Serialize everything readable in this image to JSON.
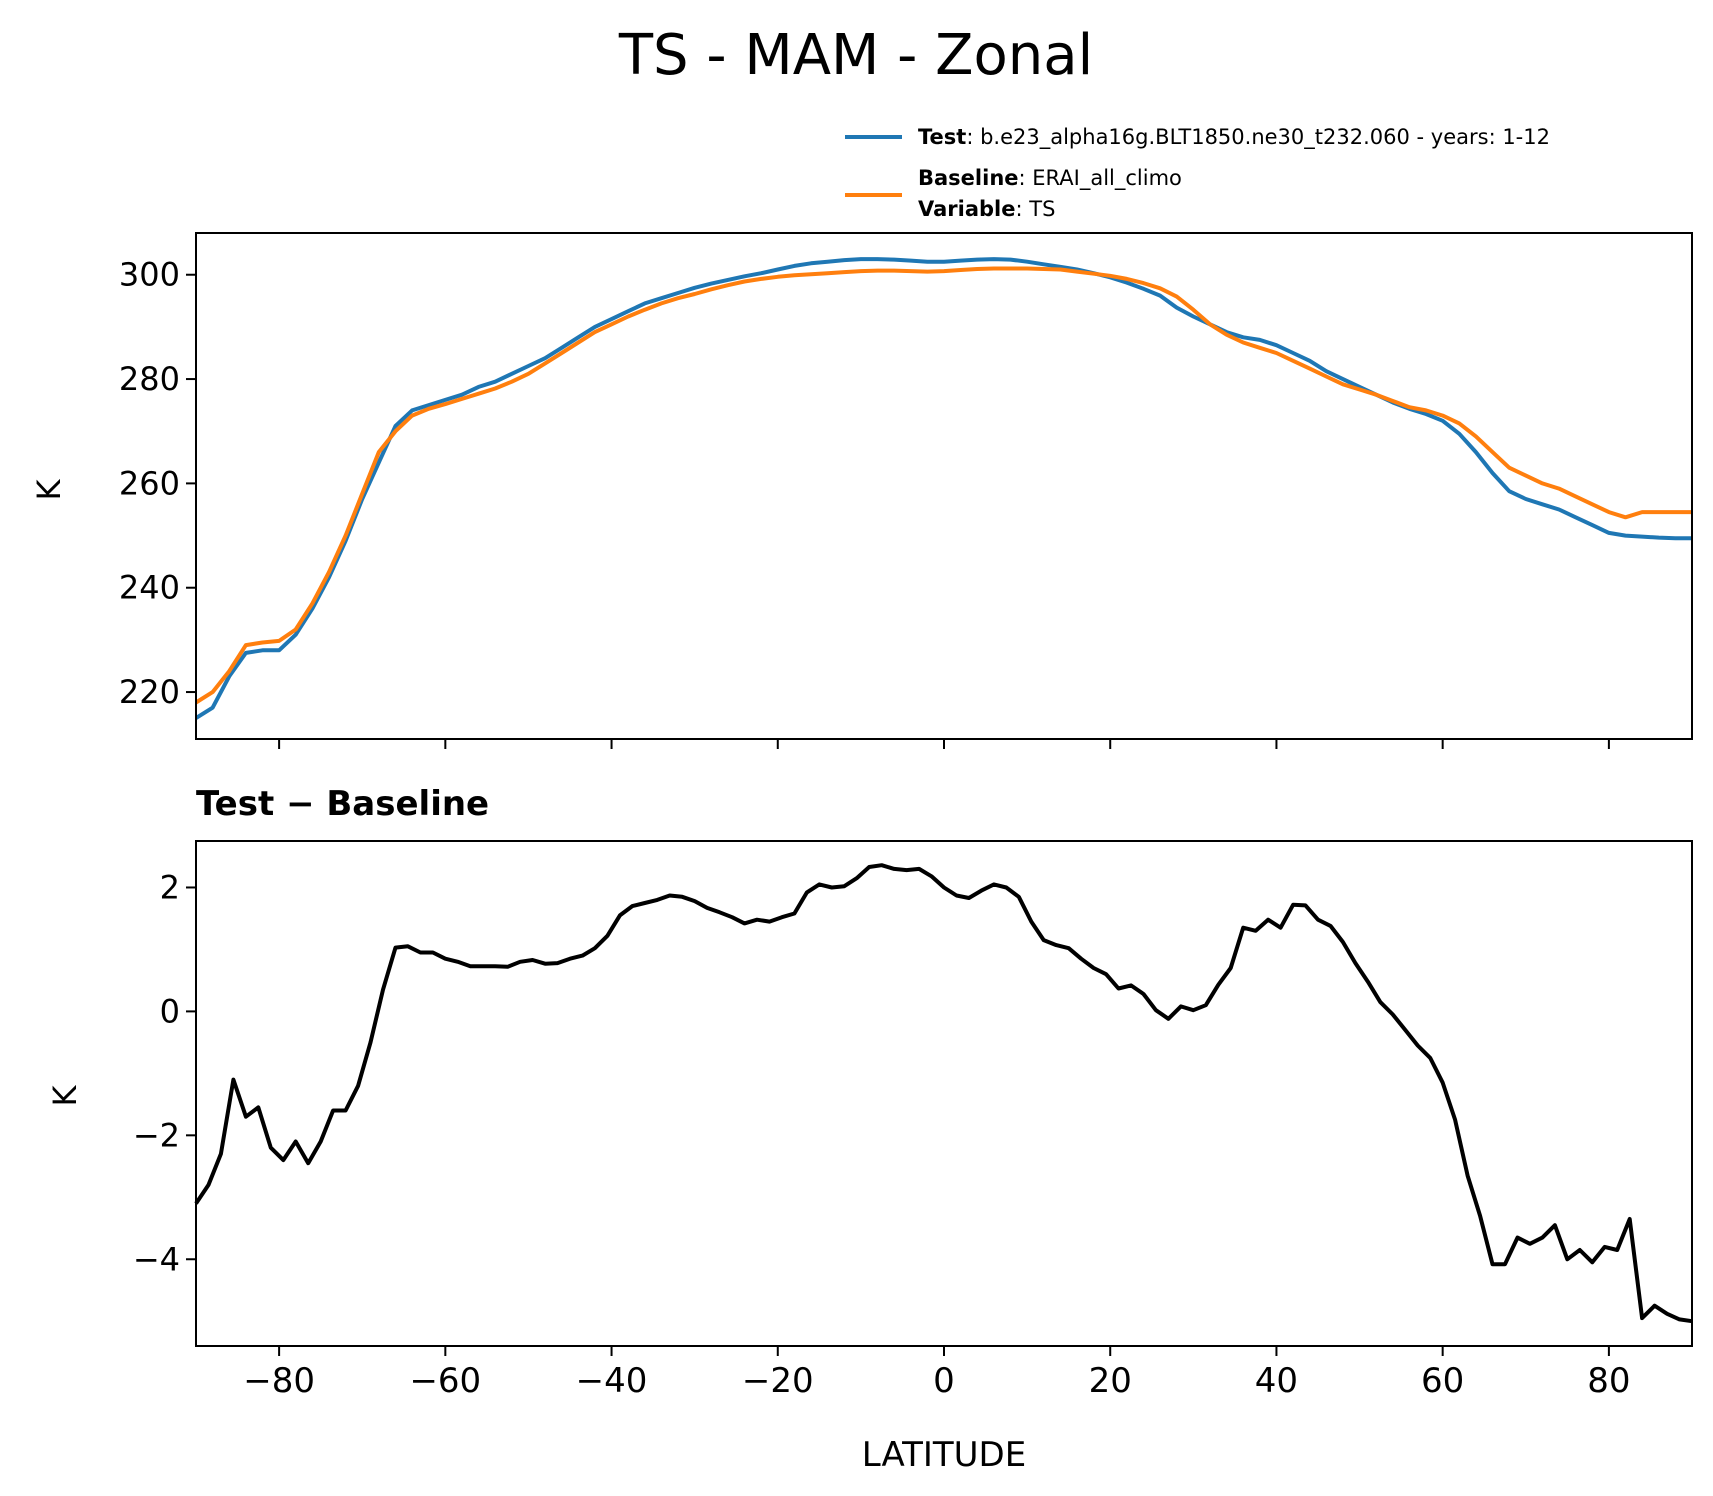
{
  "chart_data": [
    {
      "type": "line",
      "title": "TS - MAM - Zonal",
      "ylabel": "K",
      "xlim": [
        -90,
        90
      ],
      "ylim": [
        211,
        308
      ],
      "yticks": [
        220,
        240,
        260,
        280,
        300
      ],
      "xticks": [
        -80,
        -60,
        -40,
        -20,
        0,
        20,
        40,
        60,
        80
      ],
      "legend": {
        "placement": "above-right",
        "entries": [
          {
            "bold": "Test",
            "text": ": b.e23_alpha16g.BLT1850.ne30_t232.060 - years: 1-12",
            "color": "#1f77b4"
          },
          {
            "bold": "Baseline",
            "text": ": ERAI_all_climo",
            "color": "#ff7f0e"
          },
          {
            "bold": "Variable",
            "text": ": TS"
          }
        ]
      },
      "x": [
        -90,
        -88,
        -86,
        -84,
        -82,
        -80,
        -78,
        -76,
        -74,
        -72,
        -70,
        -68,
        -66,
        -64,
        -62,
        -60,
        -58,
        -56,
        -54,
        -52,
        -50,
        -48,
        -46,
        -44,
        -42,
        -40,
        -38,
        -36,
        -34,
        -32,
        -30,
        -28,
        -26,
        -24,
        -22,
        -20,
        -18,
        -16,
        -14,
        -12,
        -10,
        -8,
        -6,
        -4,
        -2,
        0,
        2,
        4,
        6,
        8,
        10,
        12,
        14,
        16,
        18,
        20,
        22,
        24,
        26,
        28,
        30,
        32,
        34,
        36,
        38,
        40,
        42,
        44,
        46,
        48,
        50,
        52,
        54,
        56,
        58,
        60,
        62,
        64,
        66,
        68,
        70,
        72,
        74,
        76,
        78,
        80,
        82,
        84,
        86,
        88,
        90
      ],
      "series": [
        {
          "name": "Test",
          "color": "#1f77b4",
          "values": [
            215,
            217,
            223,
            227.5,
            228,
            228,
            231,
            236,
            242,
            249,
            257,
            264,
            271,
            274,
            275,
            276,
            277,
            278.5,
            279.5,
            281,
            282.5,
            284,
            286,
            288,
            290,
            291.5,
            293,
            294.5,
            295.5,
            296.5,
            297.5,
            298.3,
            299,
            299.7,
            300.3,
            301,
            301.7,
            302.2,
            302.5,
            302.8,
            303,
            303,
            302.9,
            302.7,
            302.5,
            302.5,
            302.7,
            302.9,
            303,
            302.9,
            302.5,
            302,
            301.5,
            301,
            300.3,
            299.5,
            298.5,
            297.3,
            296,
            293.7,
            292,
            290.5,
            289,
            288,
            287.5,
            286.5,
            285,
            283.5,
            281.5,
            280,
            278.5,
            277,
            275.5,
            274.3,
            273.3,
            272,
            269.5,
            266,
            262,
            258.5,
            257,
            256,
            255,
            253.5,
            252,
            250.5,
            250,
            249.8,
            249.6,
            249.5,
            249.5
          ]
        },
        {
          "name": "Baseline",
          "color": "#ff7f0e",
          "values": [
            218,
            220,
            224,
            229,
            229.5,
            229.8,
            232,
            237,
            243,
            250,
            258,
            266,
            270,
            273,
            274.3,
            275.2,
            276.2,
            277.2,
            278.2,
            279.5,
            281,
            283,
            285,
            287,
            289,
            290.5,
            292,
            293.3,
            294.5,
            295.5,
            296.3,
            297.2,
            298,
            298.7,
            299.2,
            299.6,
            299.9,
            300.1,
            300.3,
            300.5,
            300.7,
            300.8,
            300.8,
            300.7,
            300.6,
            300.7,
            300.9,
            301.1,
            301.2,
            301.2,
            301.2,
            301.1,
            301,
            300.6,
            300.2,
            299.8,
            299.2,
            298.4,
            297.4,
            295.8,
            293.3,
            290.5,
            288.5,
            287,
            286,
            285,
            283.5,
            282,
            280.5,
            279,
            278,
            277,
            275.8,
            274.6,
            274,
            273,
            271.5,
            269,
            266,
            263,
            261.5,
            260,
            259,
            257.5,
            256,
            254.5,
            253.5,
            254.5,
            254.5,
            254.5,
            254.5
          ]
        }
      ]
    },
    {
      "type": "line",
      "title": "Test − Baseline",
      "ylabel": "K",
      "xlabel": "LATITUDE",
      "xlim": [
        -90,
        90
      ],
      "ylim": [
        -5.4,
        2.75
      ],
      "yticks": [
        -4,
        -2,
        0,
        2
      ],
      "xticks": [
        -80,
        -60,
        -40,
        -20,
        0,
        20,
        40,
        60,
        80
      ],
      "x": [
        -90,
        -88.5,
        -87,
        -85.5,
        -84,
        -82.5,
        -81,
        -79.5,
        -78,
        -76.5,
        -75,
        -73.5,
        -72,
        -70.5,
        -69,
        -67.5,
        -66,
        -64.5,
        -63,
        -61.5,
        -60,
        -58.5,
        -57,
        -55.5,
        -54,
        -52.5,
        -51,
        -49.5,
        -48,
        -46.5,
        -45,
        -43.5,
        -42,
        -40.5,
        -39,
        -37.5,
        -36,
        -34.5,
        -33,
        -31.5,
        -30,
        -28.5,
        -27,
        -25.5,
        -24,
        -22.5,
        -21,
        -19.5,
        -18,
        -16.5,
        -15,
        -13.5,
        -12,
        -10.5,
        -9,
        -7.5,
        -6,
        -4.5,
        -3,
        -1.5,
        0,
        1.5,
        3,
        4.5,
        6,
        7.5,
        9,
        10.5,
        12,
        13.5,
        15,
        16.5,
        18,
        19.5,
        21,
        22.5,
        24,
        25.5,
        27,
        28.5,
        30,
        31.5,
        33,
        34.5,
        36,
        37.5,
        39,
        40.5,
        42,
        43.5,
        45,
        46.5,
        48,
        49.5,
        51,
        52.5,
        54,
        55.5,
        57,
        58.5,
        60,
        61.5,
        63,
        64.5,
        66,
        67.5,
        69,
        70.5,
        72,
        73.5,
        75,
        76.5,
        78,
        79.5,
        81,
        82.5,
        84,
        85.5,
        87,
        88.5,
        90
      ],
      "series": [
        {
          "color": "#000000",
          "values": [
            -3.1,
            -2.8,
            -2.3,
            -1.1,
            -1.7,
            -1.55,
            -2.2,
            -2.4,
            -2.1,
            -2.45,
            -2.1,
            -1.6,
            -1.6,
            -1.2,
            -0.5,
            0.35,
            1.03,
            1.05,
            0.95,
            0.95,
            0.85,
            0.8,
            0.73,
            0.73,
            0.73,
            0.72,
            0.8,
            0.83,
            0.77,
            0.78,
            0.85,
            0.9,
            1.02,
            1.22,
            1.55,
            1.7,
            1.75,
            1.8,
            1.87,
            1.85,
            1.78,
            1.67,
            1.6,
            1.52,
            1.42,
            1.48,
            1.45,
            1.52,
            1.58,
            1.92,
            2.05,
            2.0,
            2.02,
            2.15,
            2.33,
            2.36,
            2.3,
            2.28,
            2.3,
            2.18,
            2.0,
            1.87,
            1.83,
            1.95,
            2.05,
            2.0,
            1.85,
            1.45,
            1.15,
            1.07,
            1.02,
            0.85,
            0.7,
            0.6,
            0.37,
            0.42,
            0.28,
            0.02,
            -0.12,
            0.08,
            0.02,
            0.1,
            0.43,
            0.7,
            1.35,
            1.3,
            1.48,
            1.35,
            1.72,
            1.71,
            1.48,
            1.38,
            1.12,
            0.78,
            0.48,
            0.15,
            -0.05,
            -0.3,
            -0.55,
            -0.75,
            -1.15,
            -1.75,
            -2.65,
            -3.3,
            -4.08,
            -4.08,
            -3.65,
            -3.75,
            -3.65,
            -3.45,
            -4.0,
            -3.85,
            -4.05,
            -3.8,
            -3.85,
            -3.35,
            -4.95,
            -4.75,
            -4.88,
            -4.97,
            -5.0
          ]
        }
      ]
    }
  ]
}
